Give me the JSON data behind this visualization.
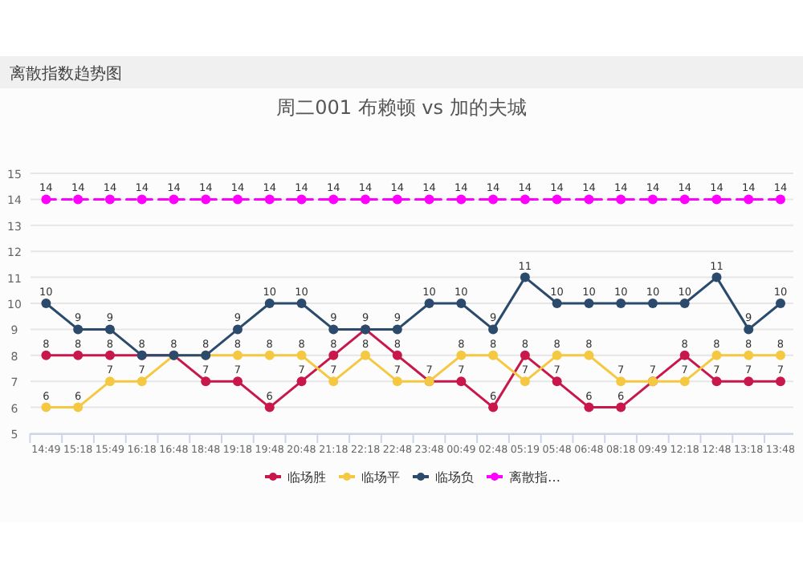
{
  "chart_data": {
    "type": "line",
    "title": "周二001 布赖顿 vs 加的夫城",
    "annotations": [
      "离散指数趋势图"
    ],
    "categories": [
      "14:49",
      "15:18",
      "15:49",
      "16:18",
      "16:48",
      "18:48",
      "19:18",
      "19:48",
      "20:48",
      "21:18",
      "22:18",
      "22:48",
      "23:48",
      "00:49",
      "02:48",
      "05:19",
      "05:48",
      "06:48",
      "08:18",
      "09:49",
      "12:18",
      "12:48",
      "13:18",
      "13:48"
    ],
    "series": [
      {
        "name": "临场胜",
        "color": "#c8174a",
        "values": [
          8,
          8,
          8,
          8,
          8,
          7,
          7,
          6,
          7,
          8,
          9,
          8,
          7,
          7,
          6,
          8,
          7,
          6,
          6,
          7,
          8,
          7,
          7,
          7
        ]
      },
      {
        "name": "临场平",
        "color": "#f5c842",
        "values": [
          6,
          6,
          7,
          7,
          8,
          8,
          8,
          8,
          8,
          7,
          8,
          7,
          7,
          8,
          8,
          7,
          8,
          8,
          7,
          7,
          7,
          8,
          8,
          8
        ],
        "value_labels": [
          "6",
          "6",
          "7",
          "7",
          null,
          "8",
          "8",
          "8",
          "8",
          "7",
          "8",
          "7",
          null,
          "8",
          "8",
          "7",
          "8",
          "8",
          "7",
          null,
          "7",
          "8",
          "8",
          "8"
        ]
      },
      {
        "name": "临场负",
        "color": "#2c4a6b",
        "values": [
          10,
          9,
          9,
          8,
          8,
          8,
          9,
          10,
          10,
          9,
          9,
          9,
          10,
          10,
          9,
          11,
          10,
          10,
          10,
          10,
          10,
          11,
          9,
          10
        ],
        "value_labels": [
          "10",
          "9",
          "9",
          null,
          null,
          null,
          "9",
          "10",
          "10",
          "9",
          null,
          "9",
          "10",
          "10",
          "9",
          "11",
          "10",
          "10",
          "10",
          "10",
          "10",
          "11",
          "9",
          "10"
        ]
      },
      {
        "name": "离散指…",
        "color": "#ff00ff",
        "line_style": "dashed",
        "values": [
          14,
          14,
          14,
          14,
          14,
          14,
          14,
          14,
          14,
          14,
          14,
          14,
          14,
          14,
          14,
          14,
          14,
          14,
          14,
          14,
          14,
          14,
          14,
          14
        ]
      }
    ],
    "ylim": [
      5,
      15
    ],
    "yticks": [
      5,
      6,
      7,
      8,
      9,
      10,
      11,
      12,
      13,
      14,
      15
    ],
    "grid": "y",
    "marker": "circle",
    "data_labels": true,
    "legend": "bottom"
  }
}
